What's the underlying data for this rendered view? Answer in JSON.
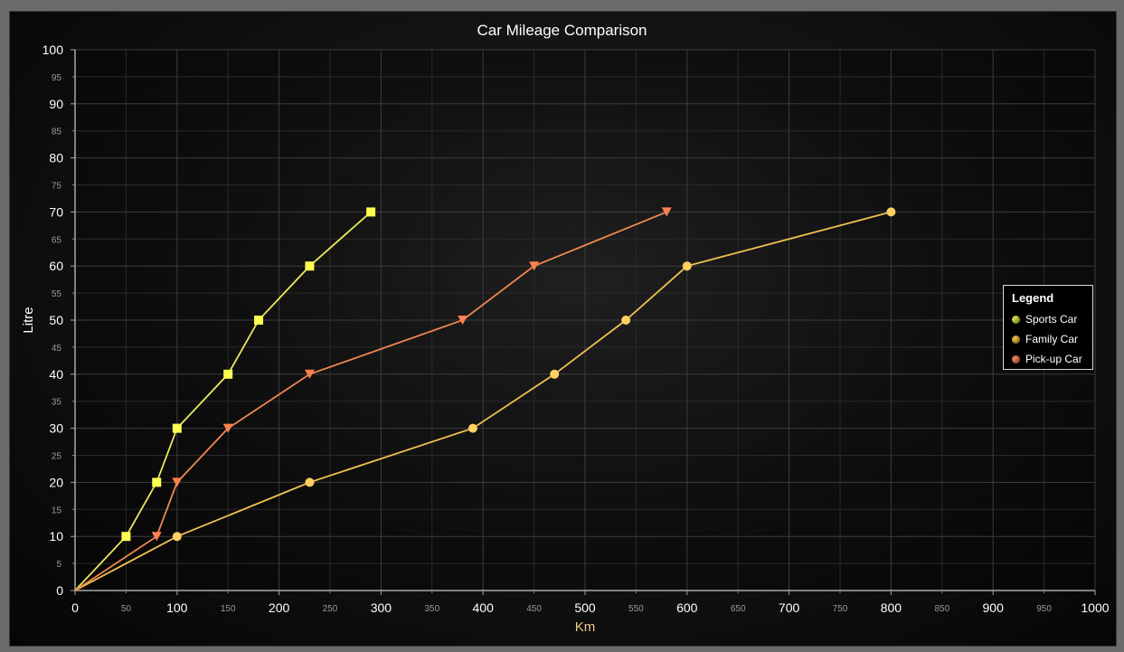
{
  "chart_data": {
    "type": "line",
    "title": "Car Mileage Comparison",
    "xlabel": "Km",
    "ylabel": "Litre",
    "xlim": [
      0,
      1000
    ],
    "ylim": [
      0,
      100
    ],
    "x_major_ticks": [
      0,
      100,
      200,
      300,
      400,
      500,
      600,
      700,
      800,
      900,
      1000
    ],
    "x_minor_ticks": [
      50,
      150,
      250,
      350,
      450,
      550,
      650,
      750,
      850,
      950
    ],
    "y_major_ticks": [
      0,
      10,
      20,
      30,
      40,
      50,
      60,
      70,
      80,
      90,
      100
    ],
    "y_minor_ticks": [
      5,
      15,
      25,
      35,
      45,
      55,
      65,
      75,
      85,
      95
    ],
    "grid": true,
    "legend": {
      "title": "Legend",
      "placement": "right"
    },
    "series": [
      {
        "name": "Sports Car",
        "color": "#e8e85a",
        "marker": "square",
        "marker_color": "#ffff50",
        "legend_color": "#c8d040",
        "points": [
          [
            0,
            0
          ],
          [
            50,
            10
          ],
          [
            80,
            20
          ],
          [
            100,
            30
          ],
          [
            150,
            40
          ],
          [
            180,
            50
          ],
          [
            230,
            60
          ],
          [
            290,
            70
          ]
        ]
      },
      {
        "name": "Family Car",
        "color": "#f0c050",
        "marker": "circle",
        "marker_color": "#ffd060",
        "legend_color": "#e0b040",
        "points": [
          [
            0,
            0
          ],
          [
            100,
            10
          ],
          [
            230,
            20
          ],
          [
            390,
            30
          ],
          [
            470,
            40
          ],
          [
            540,
            50
          ],
          [
            600,
            60
          ],
          [
            800,
            70
          ]
        ]
      },
      {
        "name": "Pick-up Car",
        "color": "#f08850",
        "marker": "triangle-down",
        "marker_color": "#ff8050",
        "legend_color": "#e07850",
        "points": [
          [
            0,
            0
          ],
          [
            80,
            10
          ],
          [
            100,
            20
          ],
          [
            150,
            30
          ],
          [
            230,
            40
          ],
          [
            380,
            50
          ],
          [
            450,
            60
          ],
          [
            580,
            70
          ]
        ]
      }
    ]
  }
}
